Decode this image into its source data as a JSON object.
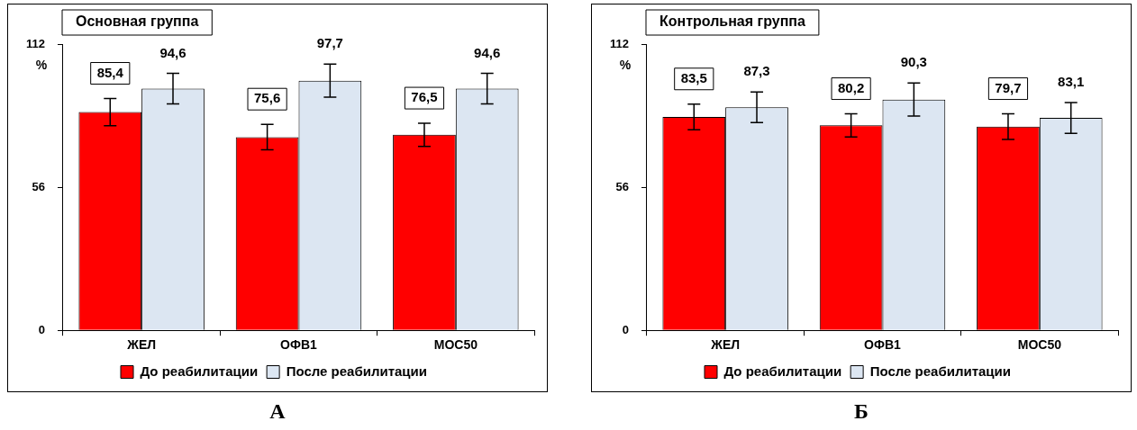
{
  "chart_data": [
    {
      "type": "bar",
      "title": "Основная группа",
      "ylabel": "%",
      "categories": [
        "ЖЕЛ",
        "ОФВ1",
        "МОС50"
      ],
      "series": [
        {
          "name": "До реабилитации",
          "color": "#ff0000",
          "values": [
            85.4,
            75.6,
            76.5
          ],
          "value_labels": [
            "85,4",
            "75,6",
            "76,5"
          ],
          "errors": [
            5.3,
            5,
            4.5
          ]
        },
        {
          "name": "После реабилитации",
          "color": "#dce6f2",
          "values": [
            94.6,
            97.7,
            94.6
          ],
          "value_labels": [
            "94,6",
            "97,7",
            "94,6"
          ],
          "errors": [
            6,
            6.5,
            6
          ]
        }
      ],
      "ylim": [
        0,
        112
      ],
      "yticks": [
        0,
        56,
        112
      ],
      "grid": false,
      "legend": "bottom",
      "annotations": [
        "А"
      ]
    },
    {
      "type": "bar",
      "title": "Контрольная группа",
      "ylabel": "%",
      "categories": [
        "ЖЕЛ",
        "ОФВ1",
        "МОС50"
      ],
      "series": [
        {
          "name": "До реабилитации",
          "color": "#ff0000",
          "values": [
            83.5,
            80.2,
            79.7
          ],
          "value_labels": [
            "83,5",
            "80,2",
            "79,7"
          ],
          "errors": [
            5,
            4.5,
            5
          ]
        },
        {
          "name": "После реабилитации",
          "color": "#dce6f2",
          "values": [
            87.3,
            90.3,
            83.1
          ],
          "value_labels": [
            "87,3",
            "90,3",
            "83,1"
          ],
          "errors": [
            6,
            6.5,
            6
          ]
        }
      ],
      "ylim": [
        0,
        112
      ],
      "yticks": [
        0,
        56,
        112
      ],
      "grid": false,
      "legend": "bottom",
      "annotations": [
        "Б"
      ]
    }
  ]
}
